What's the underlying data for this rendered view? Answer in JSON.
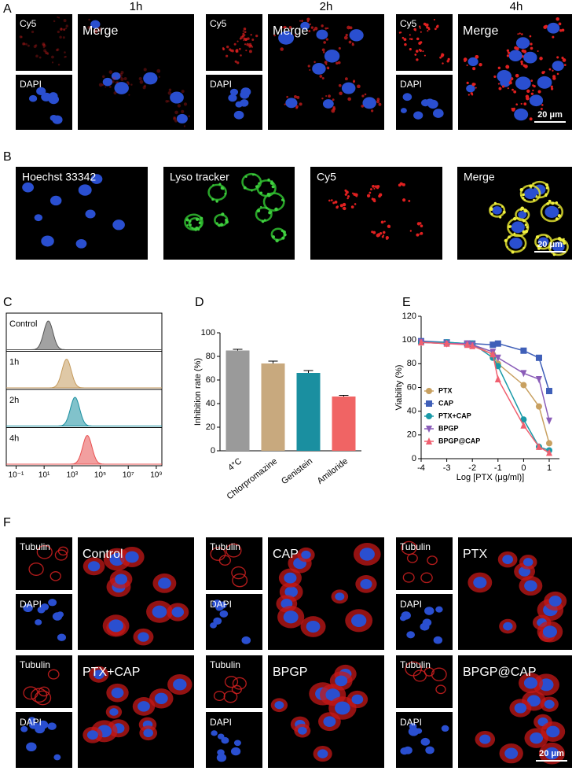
{
  "panel_a": {
    "label": "A",
    "scale_bar": "20 μm",
    "groups": [
      {
        "time": "1h",
        "small": [
          "Cy5",
          "DAPI"
        ],
        "merge": "Merge"
      },
      {
        "time": "2h",
        "small": [
          "Cy5",
          "DAPI"
        ],
        "merge": "Merge"
      },
      {
        "time": "4h",
        "small": [
          "Cy5",
          "DAPI"
        ],
        "merge": "Merge"
      }
    ]
  },
  "panel_b": {
    "label": "B",
    "scale_bar": "20 μm",
    "panels": [
      "Hoechst 33342",
      "Lyso tracker",
      "Cy5",
      "Merge"
    ]
  },
  "chart_data": [
    {
      "panel_label": "C",
      "type": "density",
      "log_scale": true,
      "xlim": [
        0.02,
        2500000000
      ],
      "xticks": [
        {
          "value": 0.1,
          "label": "10⁻¹"
        },
        {
          "value": 10,
          "label": "10¹"
        },
        {
          "value": 1000,
          "label": "10³"
        },
        {
          "value": 100000,
          "label": "10⁵"
        },
        {
          "value": 10000000,
          "label": "10⁷"
        },
        {
          "value": 1000000000,
          "label": "10⁹"
        }
      ],
      "series": [
        {
          "name": "Control",
          "color": "#555555",
          "peak": 20
        },
        {
          "name": "1h",
          "color": "#c49a5c",
          "peak": 400
        },
        {
          "name": "2h",
          "color": "#1a8fa0",
          "peak": 1600
        },
        {
          "name": "4h",
          "color": "#e85050",
          "peak": 12000
        }
      ]
    },
    {
      "panel_label": "D",
      "type": "bar",
      "y_label": "Inhibition rate (%)",
      "categories": [
        "4°C",
        "Chlorpromazine",
        "Genistein",
        "Amiloride"
      ],
      "values": [
        85,
        74,
        66,
        46
      ],
      "errors": [
        1,
        2,
        2,
        1
      ],
      "colors": [
        "#9a9a9a",
        "#c8a97e",
        "#1a8fa0",
        "#f06464"
      ],
      "ylim": [
        0,
        100
      ],
      "yticks": [
        0,
        20,
        40,
        60,
        80,
        100
      ],
      "grid": false
    },
    {
      "panel_label": "E",
      "type": "line",
      "x_label": "Log [PTX (μg/ml)]",
      "y_label": "Viability (%)",
      "x": [
        -4,
        -3,
        -2.2,
        -2,
        -1.2,
        -1,
        0,
        0.6,
        1
      ],
      "series": [
        {
          "name": "PTX",
          "color": "#c8a060",
          "marker": "circle",
          "values": [
            98,
            97,
            97,
            96,
            88,
            80,
            62,
            44,
            13
          ]
        },
        {
          "name": "CAP",
          "color": "#3f5fb8",
          "marker": "square",
          "values": [
            99,
            98,
            97,
            97,
            96,
            97,
            91,
            85,
            57
          ]
        },
        {
          "name": "PTX+CAP",
          "color": "#1a9aa8",
          "marker": "circle",
          "values": [
            98,
            98,
            97,
            97,
            85,
            78,
            33,
            10,
            7
          ]
        },
        {
          "name": "BPGP",
          "color": "#8a5cb8",
          "marker": "triangle-down",
          "values": [
            98,
            97,
            97,
            96,
            90,
            85,
            72,
            67,
            32
          ]
        },
        {
          "name": "BPGP@CAP",
          "color": "#f06070",
          "marker": "triangle-up",
          "values": [
            98,
            97,
            96,
            95,
            88,
            67,
            28,
            10,
            5
          ]
        }
      ],
      "xlim": [
        -4,
        1.4
      ],
      "ylim": [
        0,
        120
      ],
      "xticks": [
        -4,
        -3,
        -2,
        -1,
        0,
        1
      ],
      "yticks": [
        0,
        20,
        40,
        60,
        80,
        100,
        120
      ],
      "legend": "lower-left"
    }
  ],
  "panel_f": {
    "label": "F",
    "scale_bar": "20 μm",
    "groups": [
      {
        "name": "Control",
        "small": [
          "Tubulin",
          "DAPI"
        ]
      },
      {
        "name": "CAP",
        "small": [
          "Tubulin",
          "DAPI"
        ]
      },
      {
        "name": "PTX",
        "small": [
          "Tubulin",
          "DAPI"
        ]
      },
      {
        "name": "PTX+CAP",
        "small": [
          "Tubulin",
          "DAPI"
        ]
      },
      {
        "name": "BPGP",
        "small": [
          "Tubulin",
          "DAPI"
        ]
      },
      {
        "name": "BPGP@CAP",
        "small": [
          "Tubulin",
          "DAPI"
        ]
      }
    ]
  }
}
